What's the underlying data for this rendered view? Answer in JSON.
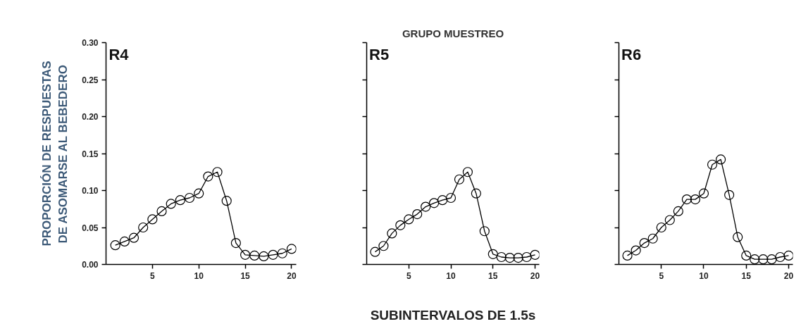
{
  "chart_data": [
    {
      "type": "line",
      "ylabel": "PROPORCIÓN DE RESPUESTAS\nDE ASOMARSE AL BEBEDERO",
      "annotations": [
        "R4"
      ],
      "x": [
        1,
        2,
        3,
        4,
        5,
        6,
        7,
        8,
        9,
        10,
        11,
        12,
        13,
        14,
        15,
        16,
        17,
        18,
        19,
        20
      ],
      "series": [
        {
          "color": "#000000",
          "values": [
            0.026,
            0.031,
            0.036,
            0.05,
            0.061,
            0.072,
            0.082,
            0.087,
            0.09,
            0.096,
            0.119,
            0.125,
            0.086,
            0.029,
            0.013,
            0.012,
            0.011,
            0.013,
            0.015,
            0.021
          ]
        }
      ],
      "xlim": [
        0,
        20.5
      ],
      "xticks": [
        5,
        10,
        15,
        20
      ],
      "ylim": [
        0,
        0.3
      ],
      "yticks": [
        {
          "value": 0,
          "label": "0.00"
        },
        {
          "value": 0.05,
          "label": "0.05"
        },
        {
          "value": 0.1,
          "label": "0.10"
        },
        {
          "value": 0.15,
          "label": "0.15"
        },
        {
          "value": 0.2,
          "label": "0.20"
        },
        {
          "value": 0.25,
          "label": "0.25"
        },
        {
          "value": 0.3,
          "label": "0.30"
        }
      ],
      "marker": "circle",
      "line_style": "solid"
    },
    {
      "type": "line",
      "title": "GRUPO MUESTREO",
      "xlabel": "SUBINTERVALOS DE 1.5s",
      "annotations": [
        "R5"
      ],
      "x": [
        1,
        2,
        3,
        4,
        5,
        6,
        7,
        8,
        9,
        10,
        11,
        12,
        13,
        14,
        15,
        16,
        17,
        18,
        19,
        20
      ],
      "series": [
        {
          "color": "#000000",
          "values": [
            0.017,
            0.025,
            0.042,
            0.053,
            0.061,
            0.068,
            0.078,
            0.083,
            0.087,
            0.09,
            0.115,
            0.125,
            0.096,
            0.045,
            0.014,
            0.01,
            0.009,
            0.009,
            0.01,
            0.013
          ]
        }
      ],
      "xlim": [
        0,
        20.5
      ],
      "xticks": [
        5,
        10,
        15,
        20
      ],
      "ylim": [
        0,
        0.3
      ],
      "yticks": [
        {
          "value": 0,
          "label": null
        },
        {
          "value": 0.05,
          "label": null
        },
        {
          "value": 0.1,
          "label": null
        },
        {
          "value": 0.15,
          "label": null
        },
        {
          "value": 0.2,
          "label": null
        },
        {
          "value": 0.25,
          "label": null
        },
        {
          "value": 0.3,
          "label": null
        }
      ],
      "tick_labels": "x",
      "marker": "circle",
      "line_style": "solid"
    },
    {
      "type": "line",
      "annotations": [
        "R6"
      ],
      "x": [
        1,
        2,
        3,
        4,
        5,
        6,
        7,
        8,
        9,
        10,
        11,
        12,
        13,
        14,
        15,
        16,
        17,
        18,
        19,
        20
      ],
      "series": [
        {
          "color": "#000000",
          "values": [
            0.012,
            0.019,
            0.029,
            0.035,
            0.05,
            0.06,
            0.072,
            0.088,
            0.088,
            0.096,
            0.135,
            0.142,
            0.094,
            0.037,
            0.012,
            0.007,
            0.007,
            0.007,
            0.01,
            0.012
          ]
        }
      ],
      "xlim": [
        0,
        20.5
      ],
      "xticks": [
        5,
        10,
        15,
        20
      ],
      "ylim": [
        0,
        0.3
      ],
      "yticks": [
        {
          "value": 0,
          "label": null
        },
        {
          "value": 0.05,
          "label": null
        },
        {
          "value": 0.1,
          "label": null
        },
        {
          "value": 0.15,
          "label": null
        },
        {
          "value": 0.2,
          "label": null
        },
        {
          "value": 0.25,
          "label": null
        },
        {
          "value": 0.3,
          "label": null
        }
      ],
      "tick_labels": "x",
      "marker": "circle",
      "line_style": "solid"
    }
  ]
}
